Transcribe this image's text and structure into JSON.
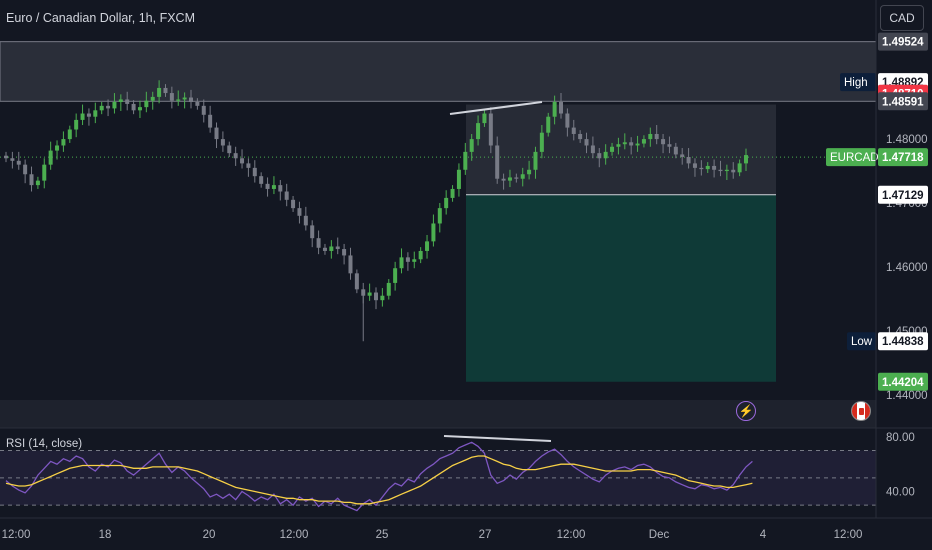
{
  "header": {
    "symbol_title": "Euro / Canadian Dollar, 1h, FXCM"
  },
  "currency_button": {
    "label": "CAD"
  },
  "colors": {
    "bg": "#131722",
    "up": "#26a69a",
    "down": "#787b86",
    "green_candle": "#4caf50",
    "rsi_line": "#7e57c2",
    "rsi_ma": "#f7d046",
    "last_price": "#4caf50",
    "tp_zone": "#0f3a37",
    "sl_zone": "#2a2e39",
    "high_tag": "#0d1f3a",
    "red_tag": "#f23645",
    "grey_tag": "#434651"
  },
  "chart_data": [
    {
      "type": "candlestick",
      "title": "Euro / Canadian Dollar, 1h, FXCM",
      "y_axis": {
        "ticks": [
          "1.48000",
          "1.47000",
          "1.46000",
          "1.45000",
          "1.44000"
        ],
        "ylim": [
          1.4395,
          1.4955
        ]
      },
      "x_axis": {
        "ticks": [
          "12:00",
          "18",
          "20",
          "12:00",
          "25",
          "27",
          "12:00",
          "Dec",
          "4",
          "12:00"
        ]
      },
      "price_tags": [
        {
          "label": "",
          "value": "1.49524",
          "kind": "grey"
        },
        {
          "label": "High",
          "value": "1.48892",
          "kind": "dark"
        },
        {
          "label": "",
          "value": "1.48710",
          "kind": "red"
        },
        {
          "label": "",
          "value": "1.48591",
          "kind": "grey"
        },
        {
          "label": "EURCAD",
          "value": "1.47718",
          "kind": "green"
        },
        {
          "label": "",
          "value": "1.47129",
          "kind": "white"
        },
        {
          "label": "Low",
          "value": "1.44838",
          "kind": "dark"
        },
        {
          "label": "",
          "value": "1.44204",
          "kind": "green"
        }
      ],
      "series_close": [
        1.477,
        1.4766,
        1.476,
        1.4745,
        1.4728,
        1.4735,
        1.476,
        1.4782,
        1.479,
        1.48,
        1.4815,
        1.483,
        1.484,
        1.4835,
        1.4845,
        1.4852,
        1.4848,
        1.4858,
        1.4862,
        1.4855,
        1.4845,
        1.485,
        1.486,
        1.4866,
        1.488,
        1.4872,
        1.486,
        1.4862,
        1.4865,
        1.4858,
        1.4852,
        1.4838,
        1.4818,
        1.48,
        1.479,
        1.4778,
        1.477,
        1.4762,
        1.4755,
        1.4742,
        1.473,
        1.4722,
        1.4728,
        1.4718,
        1.4705,
        1.4692,
        1.468,
        1.4665,
        1.4645,
        1.463,
        1.4625,
        1.4632,
        1.4628,
        1.4618,
        1.459,
        1.4565,
        1.4555,
        1.456,
        1.4548,
        1.4555,
        1.4575,
        1.4598,
        1.4615,
        1.4608,
        1.4612,
        1.4625,
        1.464,
        1.4668,
        1.4692,
        1.4708,
        1.4722,
        1.4752,
        1.478,
        1.48,
        1.4825,
        1.484,
        1.479,
        1.4738,
        1.4735,
        1.474,
        1.4738,
        1.4745,
        1.4752,
        1.478,
        1.481,
        1.4835,
        1.4858,
        1.484,
        1.4818,
        1.4808,
        1.48,
        1.479,
        1.4778,
        1.477,
        1.478,
        1.4788,
        1.4792,
        1.4795,
        1.479,
        1.4793,
        1.48,
        1.4808,
        1.48,
        1.4792,
        1.4788,
        1.4776,
        1.4772,
        1.4762,
        1.4755,
        1.4753,
        1.4758,
        1.4752,
        1.475,
        1.4752,
        1.4748,
        1.4762,
        1.4775
      ],
      "rsi": {
        "label": "RSI (14, close)",
        "ticks": [
          "80.00",
          "40.00"
        ],
        "ylim": [
          25,
          85
        ],
        "bands": [
          70,
          50,
          30
        ],
        "series_rsi": [
          48,
          44,
          41,
          39,
          44,
          52,
          57,
          62,
          60,
          64,
          62,
          66,
          64,
          58,
          55,
          60,
          58,
          63,
          61,
          55,
          52,
          56,
          60,
          64,
          68,
          60,
          54,
          58,
          55,
          50,
          46,
          42,
          36,
          38,
          35,
          38,
          34,
          40,
          37,
          33,
          36,
          34,
          38,
          31,
          34,
          30,
          36,
          33,
          35,
          29,
          33,
          31,
          35,
          30,
          28,
          26,
          31,
          34,
          30,
          36,
          42,
          46,
          44,
          49,
          47,
          53,
          57,
          60,
          64,
          66,
          68,
          72,
          74,
          76,
          73,
          68,
          52,
          46,
          48,
          52,
          49,
          54,
          57,
          62,
          66,
          69,
          71,
          67,
          62,
          58,
          55,
          52,
          49,
          47,
          52,
          55,
          57,
          58,
          56,
          59,
          60,
          58,
          54,
          51,
          50,
          47,
          45,
          43,
          42,
          45,
          44,
          42,
          43,
          41,
          45,
          52,
          58,
          62
        ],
        "series_ma": [
          46,
          45,
          44,
          44,
          45,
          47,
          49,
          51,
          53,
          55,
          57,
          58,
          59,
          59,
          59,
          59,
          59,
          59,
          59,
          58,
          57,
          57,
          57,
          58,
          58,
          58,
          58,
          58,
          57,
          56,
          55,
          53,
          51,
          49,
          47,
          45,
          43,
          42,
          41,
          40,
          39,
          38,
          37,
          36,
          35,
          35,
          34,
          34,
          34,
          33,
          33,
          33,
          33,
          32,
          32,
          31,
          31,
          31,
          32,
          33,
          34,
          36,
          38,
          40,
          42,
          44,
          47,
          50,
          53,
          56,
          59,
          61,
          63,
          65,
          66,
          66,
          64,
          62,
          60,
          59,
          57,
          56,
          56,
          56,
          57,
          58,
          59,
          60,
          60,
          60,
          59,
          58,
          57,
          56,
          55,
          55,
          55,
          55,
          55,
          56,
          56,
          56,
          55,
          54,
          53,
          52,
          50,
          48,
          47,
          46,
          45,
          44,
          44,
          43,
          43,
          44,
          45,
          46
        ]
      }
    }
  ],
  "panels": {
    "bottom_icons": [
      {
        "name": "lightning-alert-icon"
      },
      {
        "name": "canada-flag-icon"
      }
    ]
  }
}
